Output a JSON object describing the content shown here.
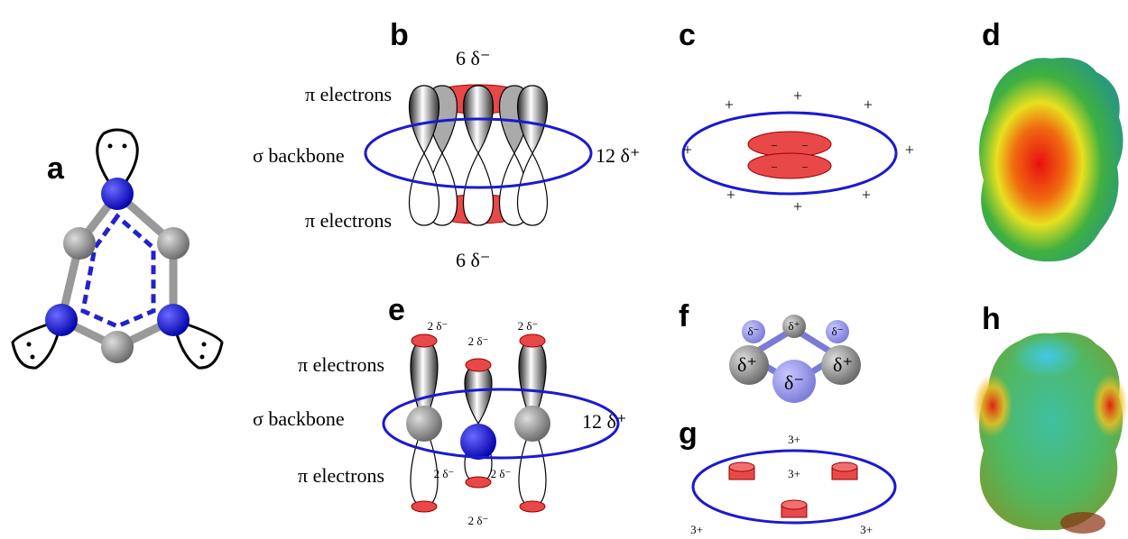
{
  "panels": {
    "a": {
      "label": "a"
    },
    "b": {
      "label": "b",
      "top_charge": "6 δ⁻",
      "upper_pi": "π electrons",
      "sigma": "σ backbone",
      "ring_charge": "12 δ⁺",
      "lower_pi": "π electrons",
      "bottom_charge": "6 δ⁻"
    },
    "c": {
      "label": "c",
      "outer_charges": [
        "+",
        "+",
        "+",
        "+",
        "+",
        "+",
        "+",
        "+"
      ],
      "inner_charges": [
        "−",
        "−",
        "−",
        "−"
      ]
    },
    "d": {
      "label": "d"
    },
    "e": {
      "label": "e",
      "lobe_charges": [
        "2 δ⁻",
        "2 δ⁻",
        "2 δ⁻",
        "2 δ⁻",
        "2 δ⁻",
        "2 δ⁻"
      ],
      "upper_pi": "π electrons",
      "sigma": "σ backbone",
      "ring_charge": "12 δ⁺",
      "lower_pi": "π electrons"
    },
    "f": {
      "label": "f",
      "atom_charges": [
        "δ⁻",
        "δ⁺",
        "δ⁻",
        "δ⁺",
        "δ⁻",
        "δ⁺"
      ]
    },
    "g": {
      "label": "g",
      "charges": [
        "3+",
        "3+",
        "3+",
        "3+"
      ]
    },
    "h": {
      "label": "h"
    }
  }
}
